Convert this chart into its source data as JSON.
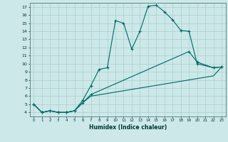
{
  "xlabel": "Humidex (Indice chaleur)",
  "bg_color": "#cce8e8",
  "line_color": "#006666",
  "grid_color": "#aacfcf",
  "xlim": [
    -0.5,
    23.5
  ],
  "ylim": [
    3.5,
    17.5
  ],
  "xticks": [
    0,
    1,
    2,
    3,
    4,
    5,
    6,
    7,
    8,
    9,
    10,
    11,
    12,
    13,
    14,
    15,
    16,
    17,
    18,
    19,
    20,
    21,
    22,
    23
  ],
  "yticks": [
    4,
    5,
    6,
    7,
    8,
    9,
    10,
    11,
    12,
    13,
    14,
    15,
    16,
    17
  ],
  "curve1_x": [
    0,
    1,
    2,
    3,
    4,
    5,
    6,
    7,
    8,
    9,
    10,
    11,
    12,
    13,
    14,
    15,
    16,
    17,
    18,
    19,
    20,
    22,
    23
  ],
  "curve1_y": [
    5.0,
    4.0,
    4.2,
    4.0,
    4.0,
    4.2,
    5.5,
    7.3,
    9.3,
    9.5,
    15.3,
    15.0,
    11.8,
    14.0,
    17.1,
    17.2,
    16.4,
    15.4,
    14.1,
    14.0,
    10.0,
    9.5,
    9.6
  ],
  "curve2_x": [
    0,
    1,
    2,
    3,
    4,
    5,
    6,
    7,
    19,
    20,
    22,
    23
  ],
  "curve2_y": [
    5.0,
    4.0,
    4.2,
    4.0,
    4.0,
    4.2,
    5.2,
    6.2,
    11.5,
    10.2,
    9.5,
    9.6
  ],
  "curve3_x": [
    0,
    1,
    2,
    3,
    4,
    5,
    6,
    7,
    22,
    23
  ],
  "curve3_y": [
    5.0,
    4.0,
    4.2,
    4.0,
    4.0,
    4.2,
    5.2,
    6.0,
    8.5,
    9.6
  ]
}
